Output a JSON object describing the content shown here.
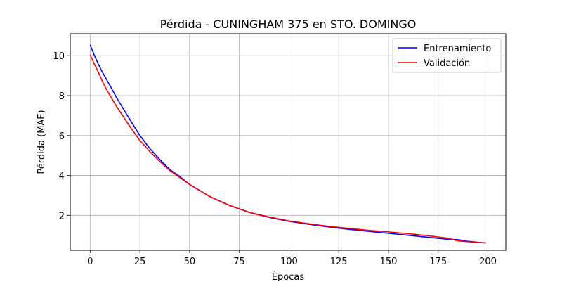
{
  "chart_data": {
    "type": "line",
    "title": "Pérdida - CUNINGHAM 375 en STO. DOMINGO",
    "xlabel": "Épocas",
    "ylabel": "Pérdida (MAE)",
    "xlim": [
      -10,
      209
    ],
    "ylim": [
      0.25,
      11.1
    ],
    "xticks": [
      0,
      25,
      50,
      75,
      100,
      125,
      150,
      175,
      200
    ],
    "yticks": [
      2,
      4,
      6,
      8,
      10
    ],
    "grid": true,
    "legend_position": "top-right",
    "x": [
      0,
      2,
      4,
      6,
      8,
      10,
      13,
      16,
      20,
      25,
      30,
      35,
      40,
      45,
      50,
      60,
      70,
      80,
      90,
      100,
      110,
      120,
      130,
      140,
      150,
      160,
      170,
      180,
      185,
      190,
      195,
      199
    ],
    "series": [
      {
        "name": "Entrenamiento",
        "color": "#0000ff",
        "values": [
          10.55,
          10.05,
          9.6,
          9.2,
          8.85,
          8.5,
          7.95,
          7.45,
          6.8,
          6.0,
          5.35,
          4.8,
          4.3,
          3.95,
          3.55,
          2.95,
          2.5,
          2.15,
          1.9,
          1.7,
          1.55,
          1.42,
          1.3,
          1.2,
          1.1,
          1.0,
          0.9,
          0.8,
          0.78,
          0.7,
          0.65,
          0.62
        ]
      },
      {
        "name": "Validación",
        "color": "#ff0000",
        "values": [
          10.05,
          9.6,
          9.2,
          8.75,
          8.35,
          8.0,
          7.5,
          7.05,
          6.45,
          5.75,
          5.2,
          4.7,
          4.25,
          3.9,
          3.55,
          2.95,
          2.5,
          2.15,
          1.92,
          1.72,
          1.58,
          1.45,
          1.35,
          1.25,
          1.17,
          1.08,
          0.98,
          0.85,
          0.72,
          0.68,
          0.64,
          0.62
        ]
      }
    ]
  }
}
